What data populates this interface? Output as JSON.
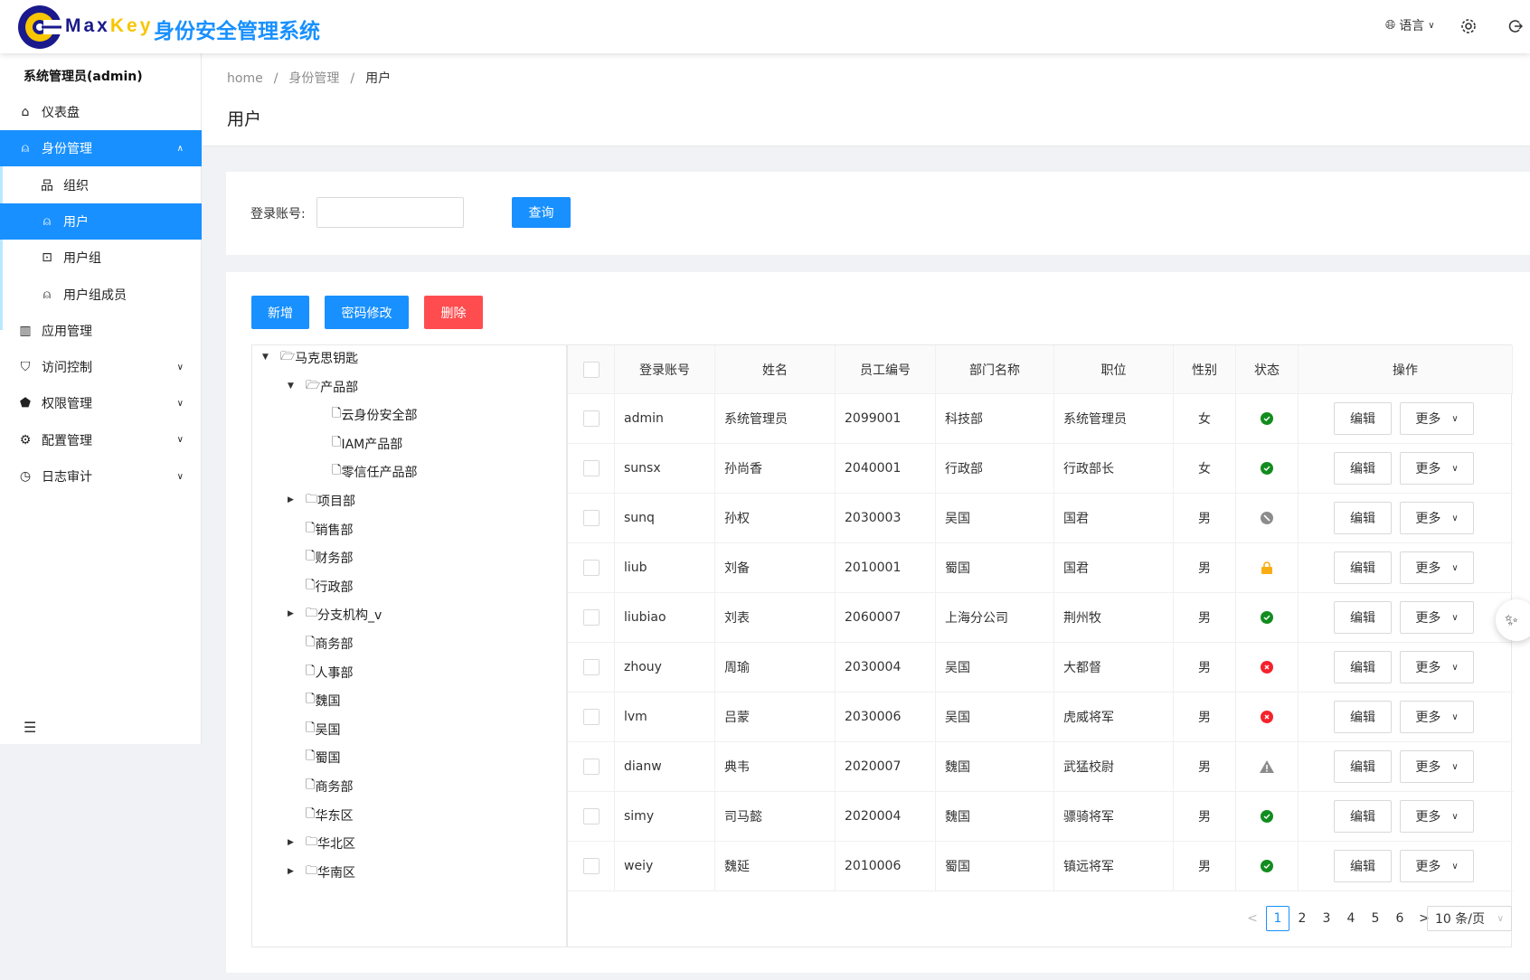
{
  "header": {
    "brand_en_1": "Max",
    "brand_en_2": "Key",
    "brand_cn": "身份安全管理系统",
    "language": "语言",
    "colors": {
      "brand_blue": "#1890ff",
      "logo_navy": "#1a1a8c",
      "logo_yellow": "#f7c600"
    }
  },
  "sidebar": {
    "user": "系统管理员(admin)",
    "items": [
      {
        "label": "仪表盘",
        "icon": "home-icon"
      },
      {
        "label": "身份管理",
        "icon": "user-icon",
        "expanded": true
      },
      {
        "label": "组织",
        "icon": "org-icon",
        "sub": true
      },
      {
        "label": "用户",
        "icon": "user-icon",
        "sub": true,
        "active": true
      },
      {
        "label": "用户组",
        "icon": "group-icon",
        "sub": true
      },
      {
        "label": "用户组成员",
        "icon": "members-icon",
        "sub": true
      },
      {
        "label": "应用管理",
        "icon": "app-icon"
      },
      {
        "label": "访问控制",
        "icon": "shield-icon",
        "arrow": true
      },
      {
        "label": "权限管理",
        "icon": "permission-icon",
        "arrow": true
      },
      {
        "label": "配置管理",
        "icon": "gear-icon",
        "arrow": true
      },
      {
        "label": "日志审计",
        "icon": "clock-icon",
        "arrow": true
      }
    ]
  },
  "breadcrumb": [
    "home",
    "身份管理",
    "用户"
  ],
  "page_title": "用户",
  "search": {
    "label": "登录账号:",
    "value": "",
    "button": "查询"
  },
  "toolbar": {
    "add": "新增",
    "password": "密码修改",
    "delete": "删除"
  },
  "tree": [
    {
      "label": "马克思钥匙",
      "level": 0,
      "type": "folder-open",
      "caret": "down"
    },
    {
      "label": "产品部",
      "level": 1,
      "type": "folder-open",
      "caret": "down"
    },
    {
      "label": "云身份安全部",
      "level": 2,
      "type": "file"
    },
    {
      "label": "IAM产品部",
      "level": 2,
      "type": "file"
    },
    {
      "label": "零信任产品部",
      "level": 2,
      "type": "file"
    },
    {
      "label": "项目部",
      "level": 1,
      "type": "folder",
      "caret": "right"
    },
    {
      "label": "销售部",
      "level": 1,
      "type": "file"
    },
    {
      "label": "财务部",
      "level": 1,
      "type": "file"
    },
    {
      "label": "行政部",
      "level": 1,
      "type": "file"
    },
    {
      "label": "分支机构_v",
      "level": 1,
      "type": "folder",
      "caret": "right"
    },
    {
      "label": "商务部",
      "level": 1,
      "type": "file"
    },
    {
      "label": "人事部",
      "level": 1,
      "type": "file"
    },
    {
      "label": "魏国",
      "level": 1,
      "type": "file"
    },
    {
      "label": "吴国",
      "level": 1,
      "type": "file"
    },
    {
      "label": "蜀国",
      "level": 1,
      "type": "file"
    },
    {
      "label": "商务部",
      "level": 1,
      "type": "file"
    },
    {
      "label": "华东区",
      "level": 1,
      "type": "file"
    },
    {
      "label": "华北区",
      "level": 1,
      "type": "folder",
      "caret": "right"
    },
    {
      "label": "华南区",
      "level": 1,
      "type": "folder",
      "caret": "right"
    }
  ],
  "table": {
    "columns": [
      "登录账号",
      "姓名",
      "员工编号",
      "部门名称",
      "职位",
      "性别",
      "状态",
      "操作"
    ],
    "edit_label": "编辑",
    "more_label": "更多",
    "rows": [
      {
        "username": "admin",
        "name": "系统管理员",
        "employee_no": "2099001",
        "dept": "科技部",
        "position": "系统管理员",
        "gender": "女",
        "status": "active"
      },
      {
        "username": "sunsx",
        "name": "孙尚香",
        "employee_no": "2040001",
        "dept": "行政部",
        "position": "行政部长",
        "gender": "女",
        "status": "active"
      },
      {
        "username": "sunq",
        "name": "孙权",
        "employee_no": "2030003",
        "dept": "吴国",
        "position": "国君",
        "gender": "男",
        "status": "disabled"
      },
      {
        "username": "liub",
        "name": "刘备",
        "employee_no": "2010001",
        "dept": "蜀国",
        "position": "国君",
        "gender": "男",
        "status": "locked"
      },
      {
        "username": "liubiao",
        "name": "刘表",
        "employee_no": "2060007",
        "dept": "上海分公司",
        "position": "荆州牧",
        "gender": "男",
        "status": "active"
      },
      {
        "username": "zhouy",
        "name": "周瑜",
        "employee_no": "2030004",
        "dept": "吴国",
        "position": "大都督",
        "gender": "男",
        "status": "inactive"
      },
      {
        "username": "lvm",
        "name": "吕蒙",
        "employee_no": "2030006",
        "dept": "吴国",
        "position": "虎威将军",
        "gender": "男",
        "status": "inactive"
      },
      {
        "username": "dianw",
        "name": "典韦",
        "employee_no": "2020007",
        "dept": "魏国",
        "position": "武猛校尉",
        "gender": "男",
        "status": "warning"
      },
      {
        "username": "simy",
        "name": "司马懿",
        "employee_no": "2020004",
        "dept": "魏国",
        "position": "骠骑将军",
        "gender": "男",
        "status": "active"
      },
      {
        "username": "weiy",
        "name": "魏延",
        "employee_no": "2010006",
        "dept": "蜀国",
        "position": "镇远将军",
        "gender": "男",
        "status": "active"
      }
    ]
  },
  "pagination": {
    "pages": [
      "1",
      "2",
      "3",
      "4",
      "5",
      "6"
    ],
    "current": "1",
    "page_size": "10 条/页"
  },
  "status_colors": {
    "active": "#128c1f",
    "disabled": "#8c8c8c",
    "locked": "#faad14",
    "inactive": "#f5222d",
    "warning": "#8c8c8c"
  }
}
